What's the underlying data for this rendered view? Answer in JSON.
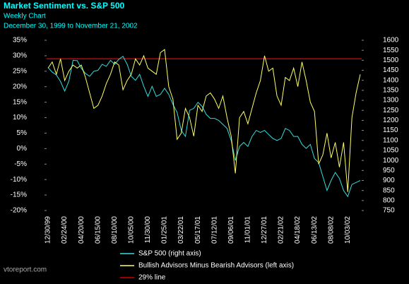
{
  "chart_data": {
    "type": "line",
    "title": "Market Sentiment vs. S&P 500",
    "subtitle": "Weekly Chart",
    "date_range": "December 30, 1999 to November 21, 2002",
    "source": "vtoreport.com",
    "categories": [
      "12/30/99",
      null,
      null,
      null,
      "02/24/00",
      null,
      null,
      null,
      "04/20/00",
      null,
      null,
      null,
      "06/15/00",
      null,
      null,
      null,
      "08/10/00",
      null,
      null,
      null,
      "10/05/00",
      null,
      null,
      null,
      "11/30/00",
      null,
      null,
      null,
      "01/25/01",
      null,
      null,
      null,
      "03/22/01",
      null,
      null,
      null,
      "05/17/01",
      null,
      null,
      null,
      "07/12/01",
      null,
      null,
      null,
      "09/06/01",
      null,
      null,
      null,
      "11/01/01",
      null,
      null,
      null,
      "12/27/01",
      null,
      null,
      null,
      "02/21/02",
      null,
      null,
      null,
      "04/18/02",
      null,
      null,
      null,
      "06/13/02",
      null,
      null,
      null,
      "08/08/02",
      null,
      null,
      null,
      "10/03/02",
      null,
      null,
      null
    ],
    "series": [
      {
        "name": "S&P 500 (right axis)",
        "color": "#33dddd",
        "axis": "y2",
        "values": [
          1464,
          1441,
          1427,
          1394,
          1346,
          1396,
          1500,
          1498,
          1460,
          1434,
          1420,
          1445,
          1450,
          1480,
          1470,
          1500,
          1480,
          1505,
          1520,
          1480,
          1420,
          1400,
          1430,
          1370,
          1320,
          1370,
          1320,
          1330,
          1360,
          1330,
          1280,
          1240,
          1150,
          1120,
          1250,
          1260,
          1290,
          1270,
          1230,
          1210,
          1210,
          1200,
          1180,
          1160,
          1100,
          1000,
          1070,
          1090,
          1070,
          1120,
          1150,
          1140,
          1150,
          1130,
          1110,
          1100,
          1110,
          1160,
          1150,
          1120,
          1120,
          1080,
          1060,
          1080,
          1010,
          990,
          920,
          850,
          900,
          940,
          910,
          850,
          820,
          880,
          890,
          900
        ]
      },
      {
        "name": "Bullish Advisors Minus Bearish Advisors (left axis)",
        "color": "#ffff66",
        "values": [
          26,
          28,
          24,
          29,
          22,
          25,
          27,
          26,
          27,
          23,
          18,
          13,
          14,
          17,
          21,
          24,
          28,
          27,
          19,
          22,
          24,
          29,
          27,
          30,
          26,
          25,
          24,
          31,
          32,
          20,
          16,
          3,
          5,
          13,
          10,
          4,
          14,
          12,
          17,
          18,
          16,
          13,
          17,
          10,
          4,
          -8,
          10,
          12,
          8,
          13,
          18,
          22,
          30,
          25,
          26,
          17,
          14,
          23,
          22,
          26,
          20,
          28,
          22,
          15,
          12,
          -5,
          -2,
          5,
          -3,
          2,
          -6,
          2,
          -14,
          10,
          18,
          24
        ]
      }
    ],
    "reference_line": {
      "value": 29,
      "label": "29% line",
      "color": "#cc0000"
    },
    "ylim": [
      -20,
      35
    ],
    "yticks": [
      {
        "value": -20,
        "label": "-20%"
      },
      {
        "value": -15,
        "label": "-15%"
      },
      {
        "value": -10,
        "label": "-10%"
      },
      {
        "value": -5,
        "label": "-5%"
      },
      {
        "value": 0,
        "label": "0%"
      },
      {
        "value": 5,
        "label": "5%"
      },
      {
        "value": 10,
        "label": "10%"
      },
      {
        "value": 15,
        "label": "15%"
      },
      {
        "value": 20,
        "label": "20%"
      },
      {
        "value": 25,
        "label": "25%"
      },
      {
        "value": 30,
        "label": "30%"
      },
      {
        "value": 35,
        "label": "35%"
      }
    ],
    "y2lim": [
      750,
      1600
    ],
    "y2ticks": [
      750,
      800,
      850,
      900,
      950,
      1000,
      1050,
      1100,
      1150,
      1200,
      1250,
      1300,
      1350,
      1400,
      1450,
      1500,
      1550,
      1600
    ]
  }
}
